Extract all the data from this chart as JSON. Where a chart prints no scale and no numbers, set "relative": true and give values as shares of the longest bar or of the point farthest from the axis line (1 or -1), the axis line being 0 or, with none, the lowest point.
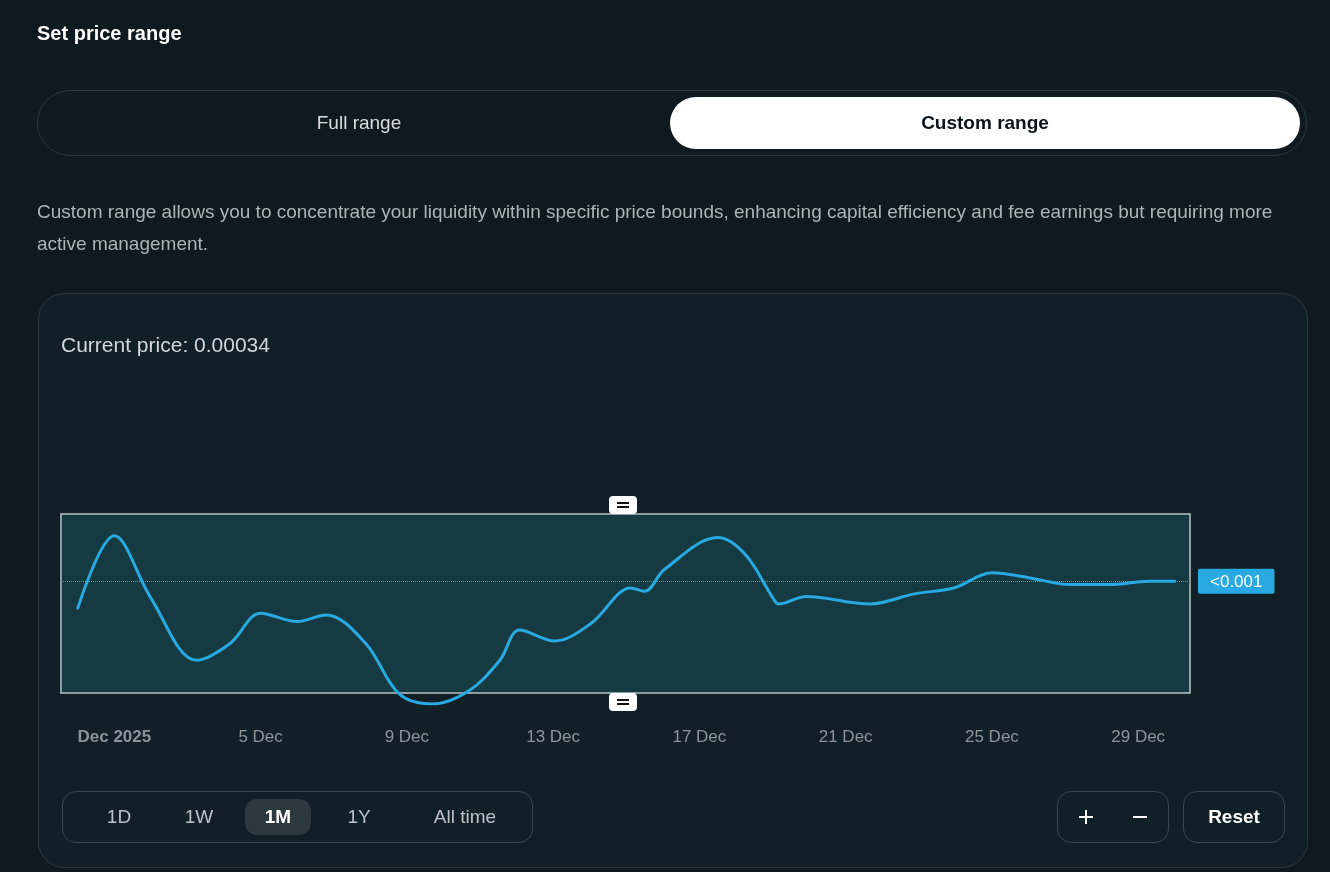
{
  "chart_data": {
    "type": "line",
    "title": "Set price range",
    "relative": true,
    "grid": false,
    "marker": "none",
    "line_style": "solid",
    "xlim": [
      "2025-11-29T13:00",
      "2025-12-30T10:00"
    ],
    "xticks": [
      {
        "value": "2025-12-01",
        "label": "Dec 2025"
      },
      {
        "value": "2025-12-05",
        "label": "5 Dec"
      },
      {
        "value": "2025-12-09",
        "label": "9 Dec"
      },
      {
        "value": "2025-12-13",
        "label": "13 Dec"
      },
      {
        "value": "2025-12-17",
        "label": "17 Dec"
      },
      {
        "value": "2025-12-21",
        "label": "21 Dec"
      },
      {
        "value": "2025-12-25",
        "label": "25 Dec"
      },
      {
        "value": "2025-12-29",
        "label": "29 Dec"
      }
    ],
    "series": [
      {
        "color": "#29a9e1",
        "x": [
          "2025-11-30T00:00",
          "2025-12-01T00:00",
          "2025-12-02T00:00",
          "2025-12-03T06:00",
          "2025-12-04T04:00",
          "2025-12-05T00:00",
          "2025-12-06T00:00",
          "2025-12-06T19:00",
          "2025-12-07T21:00",
          "2025-12-08T19:00",
          "2025-12-09T17:00",
          "2025-12-10T17:00",
          "2025-12-11T13:00",
          "2025-12-12T02:00",
          "2025-12-13T01:00",
          "2025-12-14T01:00",
          "2025-12-15T03:00",
          "2025-12-15T12:00",
          "2025-12-16T01:00",
          "2025-12-17T12:00",
          "2025-12-18T06:00",
          "2025-12-19T01:00",
          "2025-12-19T04:00",
          "2025-12-19T22:00",
          "2025-12-21T16:00",
          "2025-12-22T21:00",
          "2025-12-23T23:00",
          "2025-12-25T00:00",
          "2025-12-26T01:00",
          "2025-12-27T03:00",
          "2025-12-28T05:00",
          "2025-12-29T07:00",
          "2025-12-30T00:00"
        ],
        "values": [
          0.57,
          1.0,
          0.63,
          0.26,
          0.36,
          0.54,
          0.49,
          0.53,
          0.36,
          0.06,
          0,
          0.08,
          0.26,
          0.44,
          0.375,
          0.48,
          0.69,
          0.67,
          0.8,
          0.99,
          0.89,
          0.62,
          0.595,
          0.64,
          0.595,
          0.655,
          0.69,
          0.78,
          0.75,
          0.71,
          0.71,
          0.73,
          0.73
        ]
      }
    ],
    "ref_lines": [
      {
        "axis": "y",
        "value": 0.73,
        "label": null,
        "color": "#29a9e1",
        "line_style": "dotted"
      }
    ],
    "bands": [
      {
        "axis": "y",
        "from": 0.065,
        "to": 1.13,
        "label": null,
        "color": "#163a42"
      }
    ],
    "annotations": [
      "Full range",
      "Custom range",
      "Custom range allows you to concentrate your liquidity within specific price bounds, enhancing capital efficiency and fee earnings but requiring more active management.",
      "Current price: 0.00034",
      "1D",
      "1W",
      "1M",
      "1Y",
      "All time",
      "Reset",
      "<0.001"
    ]
  }
}
